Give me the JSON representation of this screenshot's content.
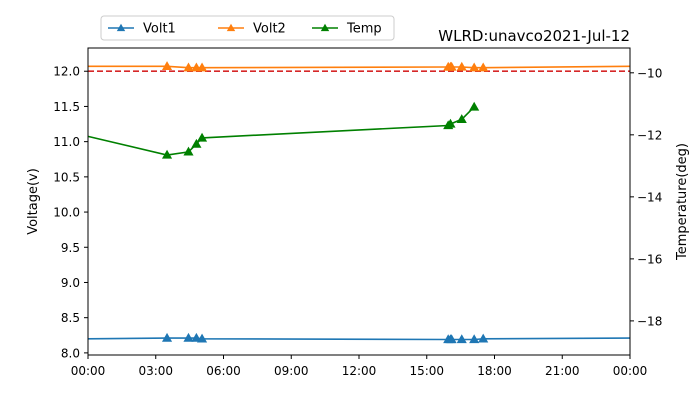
{
  "chart_data": {
    "type": "line",
    "title": "WLRD:unavco2021-Jul-12",
    "xlabel": "",
    "ylabel": "Voltage(v)",
    "y2label": "Temperature(deg)",
    "x_ticks": [
      "00:00",
      "03:00",
      "06:00",
      "09:00",
      "12:00",
      "15:00",
      "18:00",
      "21:00",
      "00:00"
    ],
    "xlim_hours": [
      0,
      24
    ],
    "ylim": [
      7.97,
      12.33
    ],
    "y_ticks": [
      "8.0",
      "8.5",
      "9.0",
      "9.5",
      "10.0",
      "10.5",
      "11.0",
      "11.5",
      "12.0"
    ],
    "y2lim": [
      -19.1,
      -9.2
    ],
    "y2_ticks": [
      "-18",
      "-16",
      "-14",
      "-12",
      "-10"
    ],
    "reference_line": {
      "y": 12.0,
      "color": "#d62728",
      "style": "dashed"
    },
    "legend_position": "top-left",
    "grid": false,
    "series": [
      {
        "name": "Volt1",
        "axis": "left",
        "color": "#1f77b4",
        "x": [
          0.0,
          3.5,
          4.45,
          4.8,
          5.05,
          15.95,
          16.05,
          16.1,
          16.55,
          17.1,
          17.5,
          24.0
        ],
        "y": [
          8.2,
          8.21,
          8.21,
          8.21,
          8.2,
          8.19,
          8.19,
          8.19,
          8.19,
          8.19,
          8.2,
          8.21
        ],
        "markers": [
          false,
          true,
          true,
          true,
          true,
          true,
          true,
          true,
          true,
          true,
          true,
          false
        ]
      },
      {
        "name": "Volt2",
        "axis": "left",
        "color": "#ff7f0e",
        "x": [
          0.0,
          3.5,
          4.45,
          4.8,
          5.05,
          15.95,
          16.05,
          16.1,
          16.55,
          17.1,
          17.5,
          24.0
        ],
        "y": [
          12.07,
          12.07,
          12.05,
          12.05,
          12.05,
          12.06,
          12.06,
          12.06,
          12.06,
          12.05,
          12.05,
          12.07
        ],
        "markers": [
          false,
          true,
          true,
          true,
          true,
          true,
          true,
          true,
          true,
          true,
          true,
          false
        ]
      },
      {
        "name": "Temp",
        "axis": "right",
        "color": "#008000",
        "x": [
          0.0,
          3.5,
          4.45,
          4.8,
          5.05,
          15.95,
          16.05,
          16.55,
          17.1
        ],
        "y": [
          -12.05,
          -12.65,
          -12.55,
          -12.3,
          -12.1,
          -11.7,
          -11.65,
          -11.5,
          -11.1
        ],
        "markers": [
          false,
          true,
          true,
          true,
          true,
          true,
          true,
          true,
          true
        ]
      }
    ]
  }
}
